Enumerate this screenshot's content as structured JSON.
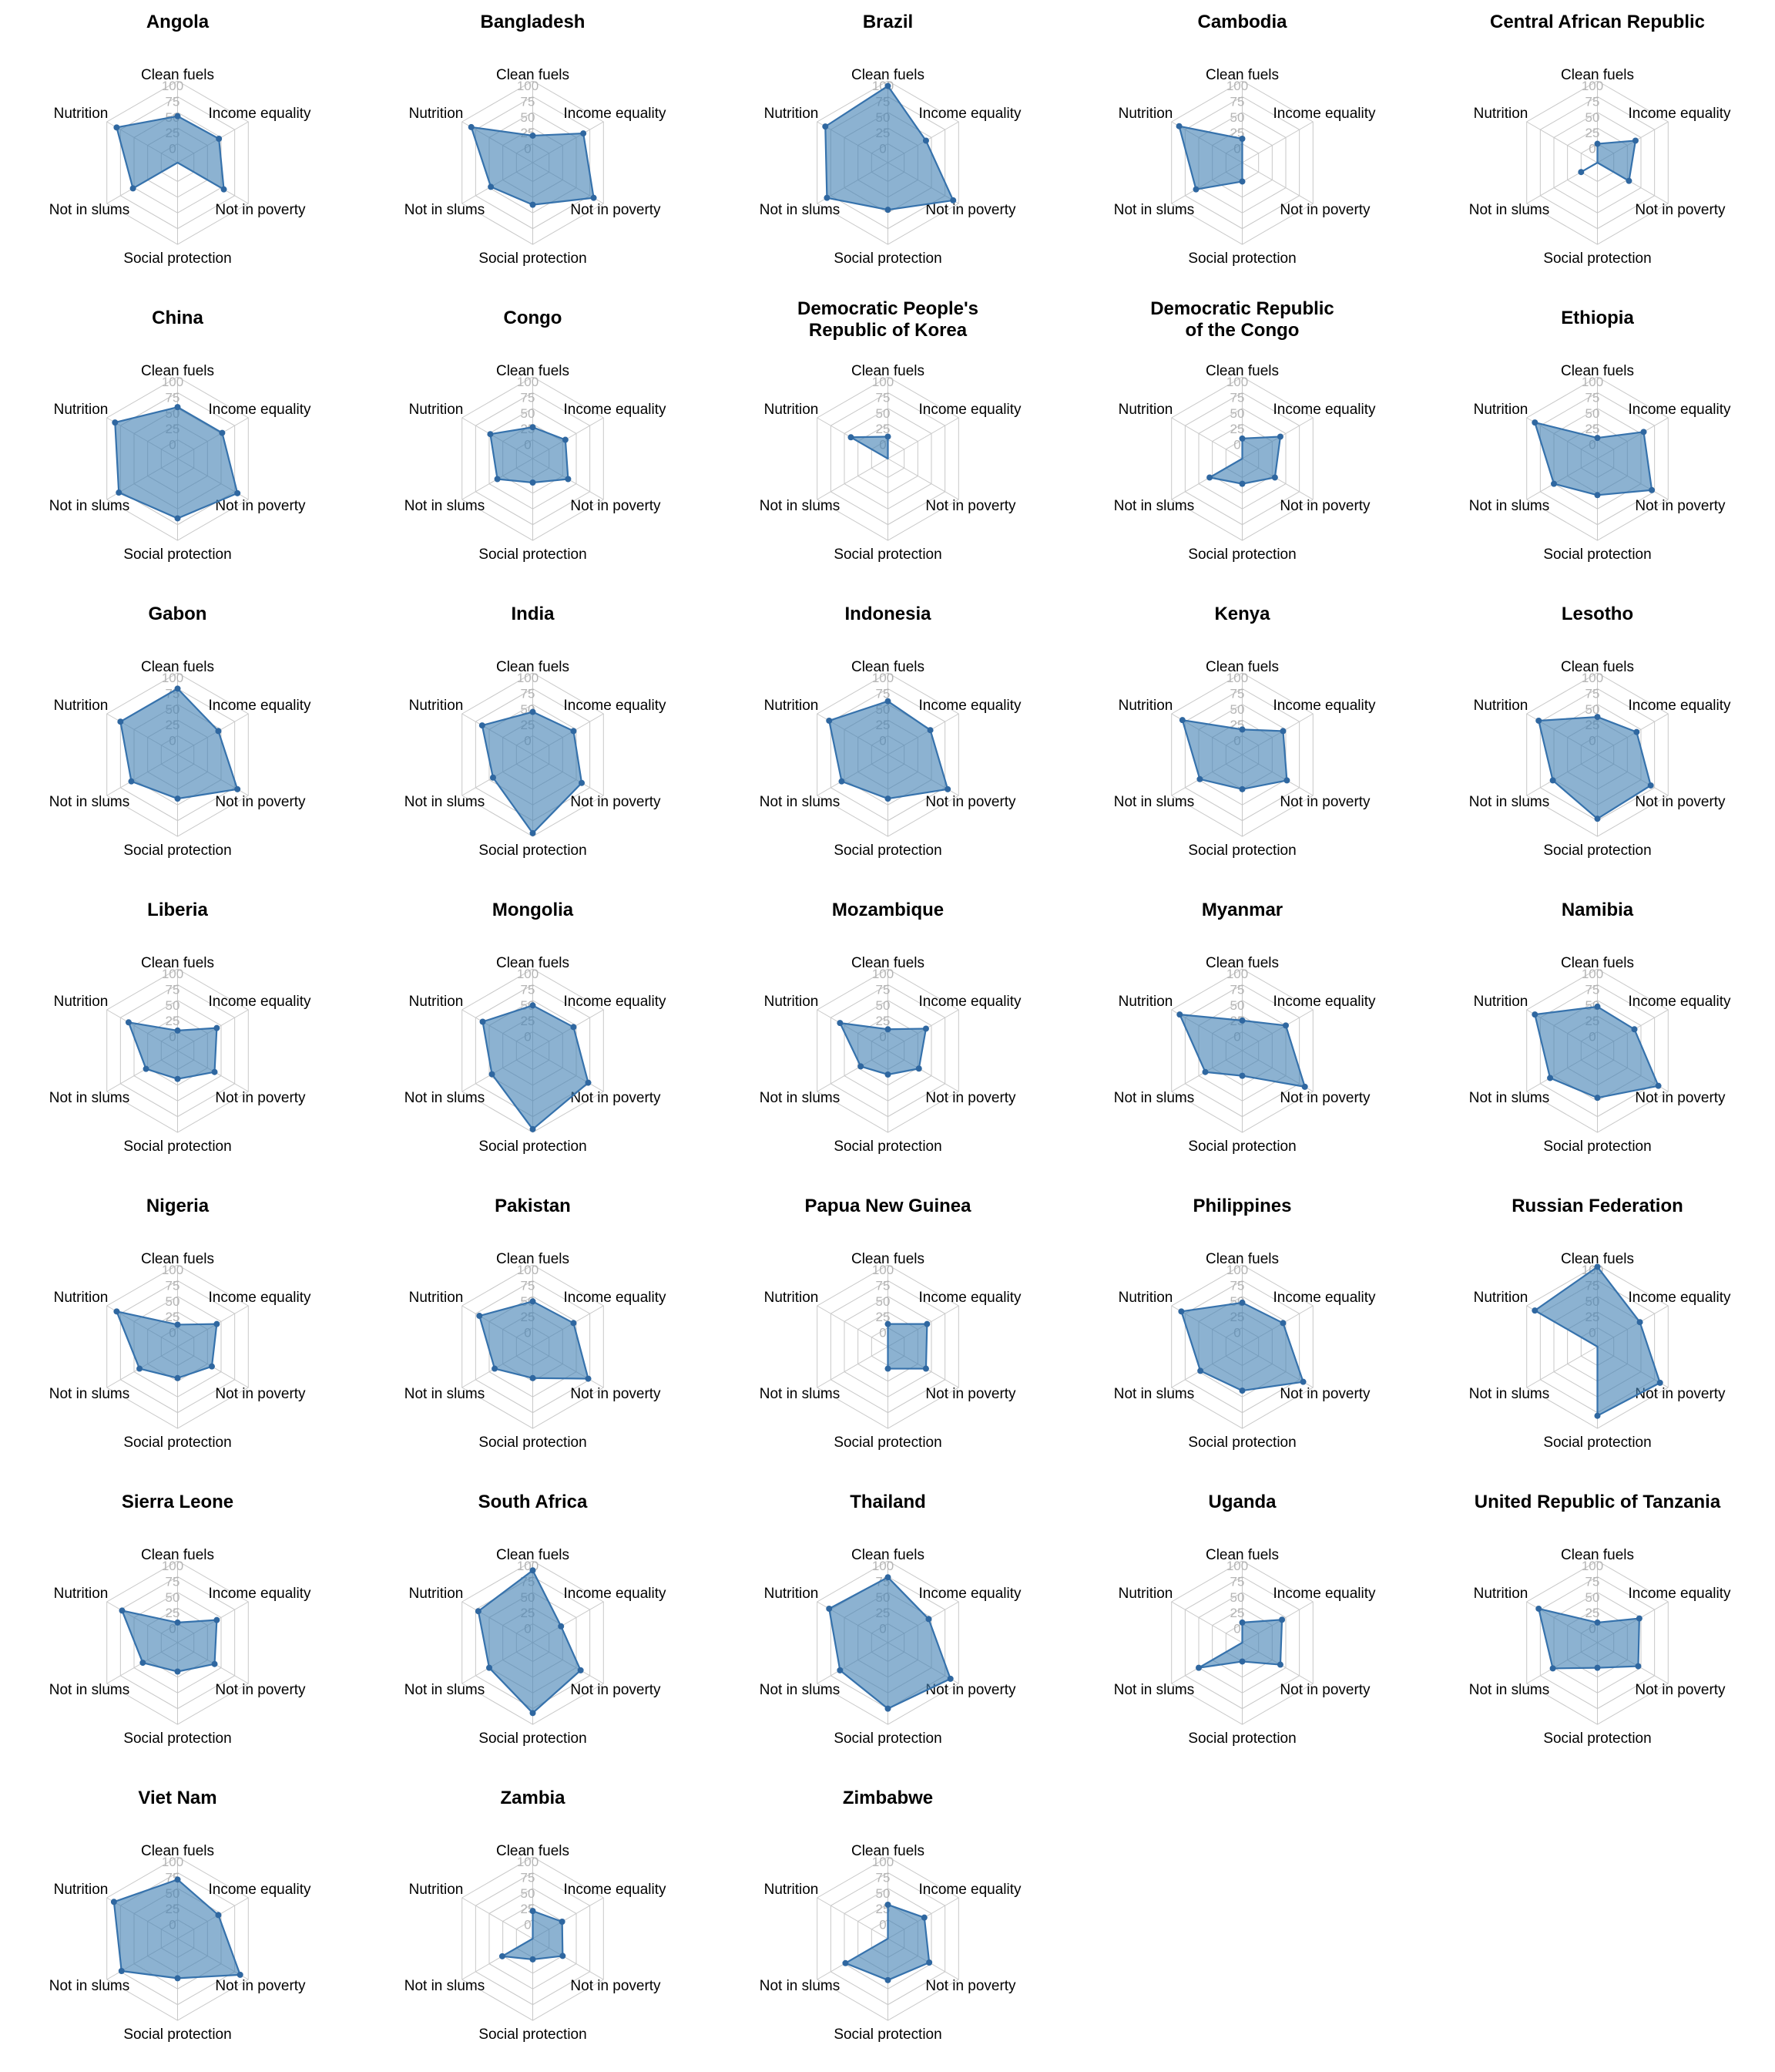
{
  "page": {
    "background": "#ffffff"
  },
  "chart_data": {
    "type": "radar",
    "title": "",
    "axes": [
      "Clean fuels",
      "Income equality",
      "Not in poverty",
      "Social protection",
      "Not in slums",
      "Nutrition"
    ],
    "tick_labels": [
      "100",
      "75",
      "50",
      "25",
      "0"
    ],
    "ticks": [
      100,
      75,
      50,
      25,
      0
    ],
    "r_min": -30,
    "r_max": 100,
    "grid": "on",
    "style": {
      "fill": "rgba(70,130,180,0.62)",
      "stroke": "#3672ac",
      "marker": "#2f67a0",
      "grid_line": "#c8c8c8",
      "tick_text": "#b5b5b5",
      "label_text": "#000000",
      "title_text": "#000000"
    },
    "series": [
      {
        "name": "Angola",
        "values": [
          44,
          46,
          55,
          null,
          52,
          82
        ]
      },
      {
        "name": "Bangladesh",
        "values": [
          13,
          63,
          82,
          37,
          47,
          83
        ]
      },
      {
        "name": "Brazil",
        "values": [
          92,
          40,
          90,
          45,
          82,
          85
        ]
      },
      {
        "name": "Cambodia",
        "values": [
          8,
          null,
          null,
          0,
          55,
          86
        ]
      },
      {
        "name": "Central African Republic",
        "values": [
          0,
          40,
          28,
          null,
          0,
          null
        ]
      },
      {
        "name": "China",
        "values": [
          52,
          52,
          80,
          65,
          78,
          85
        ]
      },
      {
        "name": "Congo",
        "values": [
          20,
          30,
          35,
          8,
          35,
          48
        ]
      },
      {
        "name": "Democratic People's\nRepublic of Korea",
        "values": [
          5,
          null,
          null,
          null,
          null,
          38
        ]
      },
      {
        "name": "Democratic Republic\nof the Congo",
        "values": [
          2,
          40,
          30,
          10,
          30,
          null
        ]
      },
      {
        "name": "Ethiopia",
        "values": [
          3,
          55,
          70,
          28,
          50,
          85
        ]
      },
      {
        "name": "Gabon",
        "values": [
          75,
          45,
          80,
          40,
          55,
          75
        ]
      },
      {
        "name": "India",
        "values": [
          38,
          45,
          60,
          95,
          43,
          63
        ]
      },
      {
        "name": "Indonesia",
        "values": [
          55,
          48,
          80,
          40,
          55,
          78
        ]
      },
      {
        "name": "Kenya",
        "values": [
          10,
          45,
          52,
          25,
          48,
          80
        ]
      },
      {
        "name": "Lesotho",
        "values": [
          30,
          42,
          68,
          72,
          52,
          78
        ]
      },
      {
        "name": "Liberia",
        "values": [
          2,
          42,
          38,
          15,
          28,
          60
        ]
      },
      {
        "name": "Mongolia",
        "values": [
          42,
          45,
          72,
          95,
          45,
          62
        ]
      },
      {
        "name": "Mozambique",
        "values": [
          4,
          40,
          27,
          8,
          20,
          58
        ]
      },
      {
        "name": "Myanmar",
        "values": [
          18,
          50,
          85,
          10,
          38,
          85
        ]
      },
      {
        "name": "Namibia",
        "values": [
          40,
          38,
          82,
          45,
          57,
          85
        ]
      },
      {
        "name": "Nigeria",
        "values": [
          5,
          42,
          33,
          20,
          40,
          82
        ]
      },
      {
        "name": "Pakistan",
        "values": [
          42,
          45,
          72,
          20,
          40,
          68
        ]
      },
      {
        "name": "Papua New Guinea",
        "values": [
          6,
          42,
          40,
          5,
          null,
          null
        ]
      },
      {
        "name": "Philippines",
        "values": [
          40,
          45,
          82,
          40,
          47,
          82
        ]
      },
      {
        "name": "Russian Federation",
        "values": [
          97,
          48,
          85,
          80,
          null,
          85
        ]
      },
      {
        "name": "Sierra Leone",
        "values": [
          2,
          42,
          38,
          16,
          34,
          72
        ]
      },
      {
        "name": "South Africa",
        "values": [
          85,
          22,
          58,
          82,
          50,
          70
        ]
      },
      {
        "name": "Thailand",
        "values": [
          74,
          45,
          85,
          75,
          58,
          78
        ]
      },
      {
        "name": "Uganda",
        "values": [
          2,
          43,
          40,
          0,
          50,
          null
        ]
      },
      {
        "name": "United Republic of Tanzania",
        "values": [
          2,
          47,
          45,
          10,
          52,
          78
        ]
      },
      {
        "name": "Viet Nam",
        "values": [
          64,
          45,
          85,
          33,
          73,
          87
        ]
      },
      {
        "name": "Zambia",
        "values": [
          14,
          24,
          25,
          3,
          26,
          null
        ]
      },
      {
        "name": "Zimbabwe",
        "values": [
          24,
          37,
          46,
          36,
          48,
          null
        ]
      }
    ]
  }
}
